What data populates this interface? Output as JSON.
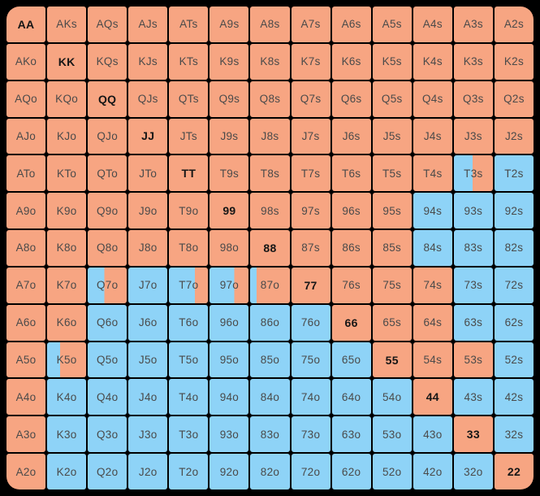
{
  "window": {
    "background": "#000000",
    "grid_line_color": "#000000"
  },
  "colors": {
    "orange": "#f7a582",
    "blue": "#8ed3f7",
    "text": "#4a4a4a",
    "text_pair": "#161616"
  },
  "chart_data": {
    "type": "heatmap",
    "title": "Poker hand range matrix 13x13",
    "row_ranks": [
      "A",
      "K",
      "Q",
      "J",
      "T",
      "9",
      "8",
      "7",
      "6",
      "5",
      "4",
      "3",
      "2"
    ],
    "col_ranks": [
      "A",
      "K",
      "Q",
      "J",
      "T",
      "9",
      "8",
      "7",
      "6",
      "5",
      "4",
      "3",
      "2"
    ],
    "fill_legend": {
      "orange": "#f7a582",
      "blue": "#8ed3f7",
      "split": "left portion blue, right portion orange"
    },
    "cells": [
      [
        {
          "label": "AA",
          "fill": "orange",
          "bold": true
        },
        {
          "label": "AKs",
          "fill": "orange"
        },
        {
          "label": "AQs",
          "fill": "orange"
        },
        {
          "label": "AJs",
          "fill": "orange"
        },
        {
          "label": "ATs",
          "fill": "orange"
        },
        {
          "label": "A9s",
          "fill": "orange"
        },
        {
          "label": "A8s",
          "fill": "orange"
        },
        {
          "label": "A7s",
          "fill": "orange"
        },
        {
          "label": "A6s",
          "fill": "orange"
        },
        {
          "label": "A5s",
          "fill": "orange"
        },
        {
          "label": "A4s",
          "fill": "orange"
        },
        {
          "label": "A3s",
          "fill": "orange"
        },
        {
          "label": "A2s",
          "fill": "orange"
        }
      ],
      [
        {
          "label": "AKo",
          "fill": "orange"
        },
        {
          "label": "KK",
          "fill": "orange",
          "bold": true
        },
        {
          "label": "KQs",
          "fill": "orange"
        },
        {
          "label": "KJs",
          "fill": "orange"
        },
        {
          "label": "KTs",
          "fill": "orange"
        },
        {
          "label": "K9s",
          "fill": "orange"
        },
        {
          "label": "K8s",
          "fill": "orange"
        },
        {
          "label": "K7s",
          "fill": "orange"
        },
        {
          "label": "K6s",
          "fill": "orange"
        },
        {
          "label": "K5s",
          "fill": "orange"
        },
        {
          "label": "K4s",
          "fill": "orange"
        },
        {
          "label": "K3s",
          "fill": "orange"
        },
        {
          "label": "K2s",
          "fill": "orange"
        }
      ],
      [
        {
          "label": "AQo",
          "fill": "orange"
        },
        {
          "label": "KQo",
          "fill": "orange"
        },
        {
          "label": "QQ",
          "fill": "orange",
          "bold": true
        },
        {
          "label": "QJs",
          "fill": "orange"
        },
        {
          "label": "QTs",
          "fill": "orange"
        },
        {
          "label": "Q9s",
          "fill": "orange"
        },
        {
          "label": "Q8s",
          "fill": "orange"
        },
        {
          "label": "Q7s",
          "fill": "orange"
        },
        {
          "label": "Q6s",
          "fill": "orange"
        },
        {
          "label": "Q5s",
          "fill": "orange"
        },
        {
          "label": "Q4s",
          "fill": "orange"
        },
        {
          "label": "Q3s",
          "fill": "orange"
        },
        {
          "label": "Q2s",
          "fill": "orange"
        }
      ],
      [
        {
          "label": "AJo",
          "fill": "orange"
        },
        {
          "label": "KJo",
          "fill": "orange"
        },
        {
          "label": "QJo",
          "fill": "orange"
        },
        {
          "label": "JJ",
          "fill": "orange",
          "bold": true
        },
        {
          "label": "JTs",
          "fill": "orange"
        },
        {
          "label": "J9s",
          "fill": "orange"
        },
        {
          "label": "J8s",
          "fill": "orange"
        },
        {
          "label": "J7s",
          "fill": "orange"
        },
        {
          "label": "J6s",
          "fill": "orange"
        },
        {
          "label": "J5s",
          "fill": "orange"
        },
        {
          "label": "J4s",
          "fill": "orange"
        },
        {
          "label": "J3s",
          "fill": "orange"
        },
        {
          "label": "J2s",
          "fill": "orange"
        }
      ],
      [
        {
          "label": "ATo",
          "fill": "orange"
        },
        {
          "label": "KTo",
          "fill": "orange"
        },
        {
          "label": "QTo",
          "fill": "orange"
        },
        {
          "label": "JTo",
          "fill": "orange"
        },
        {
          "label": "TT",
          "fill": "orange",
          "bold": true
        },
        {
          "label": "T9s",
          "fill": "orange"
        },
        {
          "label": "T8s",
          "fill": "orange"
        },
        {
          "label": "T7s",
          "fill": "orange"
        },
        {
          "label": "T6s",
          "fill": "orange"
        },
        {
          "label": "T5s",
          "fill": "orange"
        },
        {
          "label": "T4s",
          "fill": "orange"
        },
        {
          "label": "T3s",
          "fill": "split",
          "blue_pct": 48
        },
        {
          "label": "T2s",
          "fill": "blue"
        }
      ],
      [
        {
          "label": "A9o",
          "fill": "orange"
        },
        {
          "label": "K9o",
          "fill": "orange"
        },
        {
          "label": "Q9o",
          "fill": "orange"
        },
        {
          "label": "J9o",
          "fill": "orange"
        },
        {
          "label": "T9o",
          "fill": "orange"
        },
        {
          "label": "99",
          "fill": "orange",
          "bold": true
        },
        {
          "label": "98s",
          "fill": "orange"
        },
        {
          "label": "97s",
          "fill": "orange"
        },
        {
          "label": "96s",
          "fill": "orange"
        },
        {
          "label": "95s",
          "fill": "orange"
        },
        {
          "label": "94s",
          "fill": "blue"
        },
        {
          "label": "93s",
          "fill": "blue"
        },
        {
          "label": "92s",
          "fill": "blue"
        }
      ],
      [
        {
          "label": "A8o",
          "fill": "orange"
        },
        {
          "label": "K8o",
          "fill": "orange"
        },
        {
          "label": "Q8o",
          "fill": "orange"
        },
        {
          "label": "J8o",
          "fill": "orange"
        },
        {
          "label": "T8o",
          "fill": "orange"
        },
        {
          "label": "98o",
          "fill": "orange"
        },
        {
          "label": "88",
          "fill": "orange",
          "bold": true
        },
        {
          "label": "87s",
          "fill": "orange"
        },
        {
          "label": "86s",
          "fill": "orange"
        },
        {
          "label": "85s",
          "fill": "orange"
        },
        {
          "label": "84s",
          "fill": "blue"
        },
        {
          "label": "83s",
          "fill": "blue"
        },
        {
          "label": "82s",
          "fill": "blue"
        }
      ],
      [
        {
          "label": "A7o",
          "fill": "orange"
        },
        {
          "label": "K7o",
          "fill": "orange"
        },
        {
          "label": "Q7o",
          "fill": "split",
          "blue_pct": 43
        },
        {
          "label": "J7o",
          "fill": "blue"
        },
        {
          "label": "T7o",
          "fill": "split",
          "blue_pct": 67
        },
        {
          "label": "97o",
          "fill": "split",
          "blue_pct": 64
        },
        {
          "label": "87o",
          "fill": "split",
          "blue_pct": 16
        },
        {
          "label": "77",
          "fill": "orange",
          "bold": true
        },
        {
          "label": "76s",
          "fill": "orange"
        },
        {
          "label": "75s",
          "fill": "orange"
        },
        {
          "label": "74s",
          "fill": "orange"
        },
        {
          "label": "73s",
          "fill": "blue"
        },
        {
          "label": "72s",
          "fill": "blue"
        }
      ],
      [
        {
          "label": "A6o",
          "fill": "orange"
        },
        {
          "label": "K6o",
          "fill": "orange"
        },
        {
          "label": "Q6o",
          "fill": "blue"
        },
        {
          "label": "J6o",
          "fill": "blue"
        },
        {
          "label": "T6o",
          "fill": "blue"
        },
        {
          "label": "96o",
          "fill": "blue"
        },
        {
          "label": "86o",
          "fill": "blue"
        },
        {
          "label": "76o",
          "fill": "blue"
        },
        {
          "label": "66",
          "fill": "orange",
          "bold": true
        },
        {
          "label": "65s",
          "fill": "orange"
        },
        {
          "label": "64s",
          "fill": "orange"
        },
        {
          "label": "63s",
          "fill": "blue"
        },
        {
          "label": "62s",
          "fill": "blue"
        }
      ],
      [
        {
          "label": "A5o",
          "fill": "orange"
        },
        {
          "label": "K5o",
          "fill": "split",
          "blue_pct": 33
        },
        {
          "label": "Q5o",
          "fill": "blue"
        },
        {
          "label": "J5o",
          "fill": "blue"
        },
        {
          "label": "T5o",
          "fill": "blue"
        },
        {
          "label": "95o",
          "fill": "blue"
        },
        {
          "label": "85o",
          "fill": "blue"
        },
        {
          "label": "75o",
          "fill": "blue"
        },
        {
          "label": "65o",
          "fill": "blue"
        },
        {
          "label": "55",
          "fill": "orange",
          "bold": true
        },
        {
          "label": "54s",
          "fill": "orange"
        },
        {
          "label": "53s",
          "fill": "orange"
        },
        {
          "label": "52s",
          "fill": "blue"
        }
      ],
      [
        {
          "label": "A4o",
          "fill": "orange"
        },
        {
          "label": "K4o",
          "fill": "blue"
        },
        {
          "label": "Q4o",
          "fill": "blue"
        },
        {
          "label": "J4o",
          "fill": "blue"
        },
        {
          "label": "T4o",
          "fill": "blue"
        },
        {
          "label": "94o",
          "fill": "blue"
        },
        {
          "label": "84o",
          "fill": "blue"
        },
        {
          "label": "74o",
          "fill": "blue"
        },
        {
          "label": "64o",
          "fill": "blue"
        },
        {
          "label": "54o",
          "fill": "blue"
        },
        {
          "label": "44",
          "fill": "orange",
          "bold": true
        },
        {
          "label": "43s",
          "fill": "blue"
        },
        {
          "label": "42s",
          "fill": "blue"
        }
      ],
      [
        {
          "label": "A3o",
          "fill": "orange"
        },
        {
          "label": "K3o",
          "fill": "blue"
        },
        {
          "label": "Q3o",
          "fill": "blue"
        },
        {
          "label": "J3o",
          "fill": "blue"
        },
        {
          "label": "T3o",
          "fill": "blue"
        },
        {
          "label": "93o",
          "fill": "blue"
        },
        {
          "label": "83o",
          "fill": "blue"
        },
        {
          "label": "73o",
          "fill": "blue"
        },
        {
          "label": "63o",
          "fill": "blue"
        },
        {
          "label": "53o",
          "fill": "blue"
        },
        {
          "label": "43o",
          "fill": "blue"
        },
        {
          "label": "33",
          "fill": "orange",
          "bold": true
        },
        {
          "label": "32s",
          "fill": "blue"
        }
      ],
      [
        {
          "label": "A2o",
          "fill": "orange"
        },
        {
          "label": "K2o",
          "fill": "blue"
        },
        {
          "label": "Q2o",
          "fill": "blue"
        },
        {
          "label": "J2o",
          "fill": "blue"
        },
        {
          "label": "T2o",
          "fill": "blue"
        },
        {
          "label": "92o",
          "fill": "blue"
        },
        {
          "label": "82o",
          "fill": "blue"
        },
        {
          "label": "72o",
          "fill": "blue"
        },
        {
          "label": "62o",
          "fill": "blue"
        },
        {
          "label": "52o",
          "fill": "blue"
        },
        {
          "label": "42o",
          "fill": "blue"
        },
        {
          "label": "32o",
          "fill": "blue"
        },
        {
          "label": "22",
          "fill": "orange",
          "bold": true
        }
      ]
    ]
  }
}
